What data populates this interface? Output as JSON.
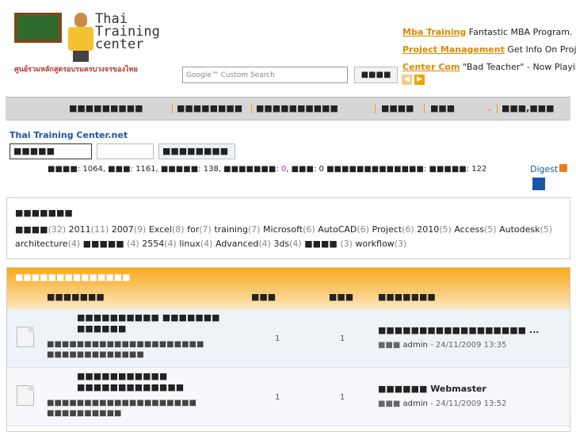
{
  "logo": {
    "brand_line1": "Thai",
    "brand_line2": "Training",
    "brand_line3": "center",
    "tagline": "ศูนย์รวมหลักสูตรอบรมครบวงจรของไทย"
  },
  "search": {
    "placeholder": "Google™ Custom Search",
    "button_label": "■■■■"
  },
  "ads": [
    {
      "link": "Mba Training",
      "text": "Fantastic MBA Program."
    },
    {
      "link": "Project Management",
      "text": "Get Info On Proje"
    },
    {
      "link": "Center Com",
      "text": "\"Bad Teacher\" - Now Playin"
    }
  ],
  "menu": [
    "■■■■■■■■■",
    "■■■■■■■■",
    "■■■■■■■■■■",
    "■■■■",
    "■■■",
    "■■■,■■■"
  ],
  "site_title": "Thai Training Center.net",
  "tabs": [
    "■■■■■",
    "",
    "■■■■■■■■"
  ],
  "stats": {
    "a_label": "■■■■",
    "a": "1064",
    "b_label": "■■■",
    "b": "1161",
    "c_label": "■■■■■",
    "c": "138",
    "d_label": "■■■■■■■",
    "d": "0",
    "e_label": "■■■",
    "e": "0",
    "f_label": "■■■■■■■■■■■■■",
    "g_label": "■■■■■",
    "g": "122",
    "digest": "Digest"
  },
  "tag_cloud": {
    "title": "■■■■■■■",
    "line1": [
      {
        "tag": "■■■■",
        "count": "(32)"
      },
      {
        "tag": "2011",
        "count": "(11)"
      },
      {
        "tag": "2007",
        "count": "(9)"
      },
      {
        "tag": "Excel",
        "count": "(8)"
      },
      {
        "tag": "for",
        "count": "(7)"
      },
      {
        "tag": "training",
        "count": "(7)"
      },
      {
        "tag": "Microsoft",
        "count": "(6)"
      },
      {
        "tag": "AutoCAD",
        "count": "(6)"
      },
      {
        "tag": "Project",
        "count": "(6)"
      },
      {
        "tag": "2010",
        "count": "(5)"
      },
      {
        "tag": "Access",
        "count": "(5)"
      },
      {
        "tag": "Autodesk",
        "count": "(5)"
      }
    ],
    "line2": [
      {
        "tag": "architecture",
        "count": "(4)"
      },
      {
        "tag": "■■■■■",
        "count": "(4)"
      },
      {
        "tag": "2554",
        "count": "(4)"
      },
      {
        "tag": "linux",
        "count": "(4)"
      },
      {
        "tag": "Advanced",
        "count": "(4)"
      },
      {
        "tag": "3ds",
        "count": "(4)"
      },
      {
        "tag": "■■■■",
        "count": "(3)"
      },
      {
        "tag": "workflow",
        "count": "(3)"
      }
    ]
  },
  "forum": {
    "section_title": "■■■■■■■■■■■■■■",
    "col_forum": "■■■■■■■",
    "col_topics": "■■■",
    "col_posts": "■■■",
    "col_last": "■■■■■■■",
    "rows": [
      {
        "title": "■■■■■■■■■■ ■■■■■■■ ■■■■■■",
        "desc": "■■■■■■■■■■■■■■■■■■■■■ ■■■■■■■■■■■■■",
        "topics": "1",
        "posts": "1",
        "last_title": "■■■■■■■■■■■■■■■■■■ ...",
        "last_by": "admin",
        "last_date": "- 24/11/2009 13:35"
      },
      {
        "title": "■■■■■■■■■■■ ■■■■■■■■■■■■■",
        "desc": "■■■■■■■■■■■■■■■■■■■■ ■■■■■■■■■■",
        "topics": "1",
        "posts": "1",
        "last_title": "■■■■■■ Webmaster",
        "last_by": "admin",
        "last_date": "- 24/11/2009 13:52"
      }
    ]
  }
}
